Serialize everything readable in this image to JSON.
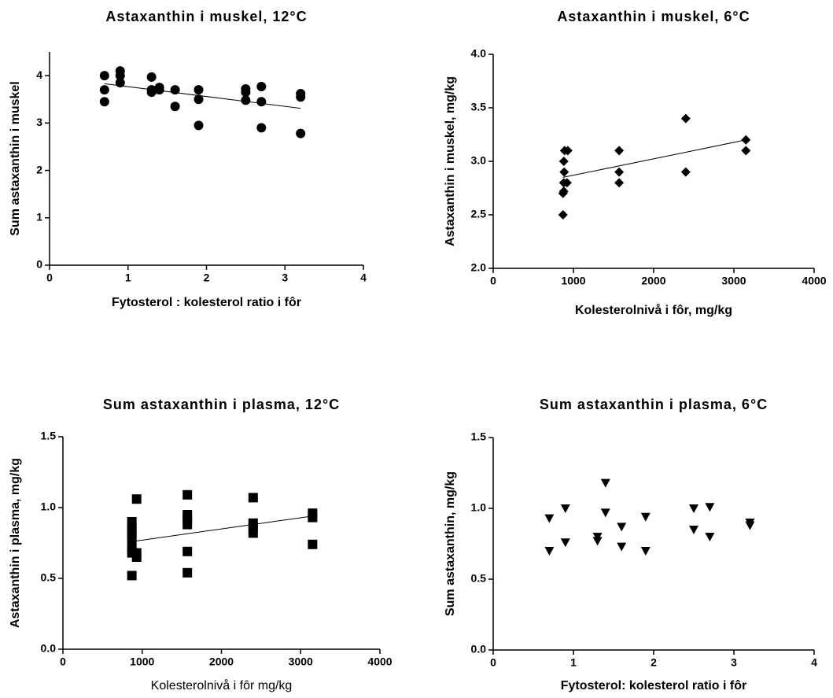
{
  "chart_data": [
    {
      "type": "scatter",
      "title": "Astaxanthin i muskel, 12°C",
      "x_label": "Fytosterol : kolesterol ratio i fôr",
      "y_label": "Sum astaxanthin i muskel",
      "marker": "circle",
      "color": "#000000",
      "x": [
        0.7,
        0.7,
        0.7,
        0.9,
        0.9,
        0.9,
        1.3,
        1.3,
        1.3,
        1.4,
        1.4,
        1.6,
        1.6,
        1.9,
        1.9,
        1.9,
        2.5,
        2.5,
        2.5,
        2.7,
        2.7,
        2.7,
        3.2,
        3.2,
        3.2
      ],
      "values": [
        4.0,
        3.7,
        3.45,
        4.1,
        4.0,
        3.85,
        3.97,
        3.65,
        3.7,
        3.75,
        3.7,
        3.7,
        3.35,
        3.7,
        3.5,
        2.95,
        3.72,
        3.65,
        3.48,
        3.77,
        3.45,
        2.9,
        3.62,
        3.55,
        2.78
      ],
      "trend_line": {
        "x": [
          0.7,
          3.2
        ],
        "y": [
          3.83,
          3.31
        ]
      },
      "xlim": [
        0,
        4
      ],
      "xticks": [
        0,
        1,
        2,
        3,
        4
      ],
      "ylim": [
        0,
        4.5
      ],
      "yticks": [
        0,
        1,
        2,
        3,
        4
      ]
    },
    {
      "type": "scatter",
      "title": "Astaxanthin i muskel, 6°C",
      "x_label": "Kolesterolnivå i fôr, mg/kg",
      "y_label": "Astaxanthin i muskel, mg/kg",
      "marker": "diamond",
      "color": "#000000",
      "x": [
        870,
        870,
        880,
        880,
        885,
        880,
        890,
        930,
        920,
        1570,
        1570,
        1570,
        2400,
        2400,
        3150,
        3150
      ],
      "values": [
        2.5,
        2.7,
        2.72,
        2.8,
        2.9,
        3.0,
        3.1,
        3.1,
        2.8,
        3.1,
        2.9,
        2.8,
        3.4,
        2.9,
        3.2,
        3.1
      ],
      "trend_line": {
        "x": [
          870,
          3150
        ],
        "y": [
          2.85,
          3.2
        ]
      },
      "xlim": [
        0,
        4000
      ],
      "xticks": [
        0,
        1000,
        2000,
        3000,
        4000
      ],
      "ylim": [
        2,
        4
      ],
      "yticks": [
        {
          "value": 2,
          "label": "2.0"
        },
        2.5,
        {
          "value": 3,
          "label": "3.0"
        },
        3.5,
        {
          "value": 4,
          "label": "4.0"
        }
      ]
    },
    {
      "type": "scatter",
      "title": "Sum astaxanthin i plasma, 12°C",
      "x_label": "Kolesterolnivå i fôr mg/kg",
      "y_label": "Astaxanthin i plasma, mg/kg",
      "marker": "square",
      "color": "#000000",
      "x": [
        870,
        870,
        870,
        870,
        870,
        870,
        870,
        930,
        930,
        930,
        1570,
        1570,
        1570,
        1570,
        1570,
        1570,
        2400,
        2400,
        2400,
        2400,
        3150,
        3150,
        3150
      ],
      "values": [
        0.52,
        0.68,
        0.72,
        0.78,
        0.82,
        0.85,
        0.9,
        1.06,
        0.65,
        0.68,
        1.09,
        0.95,
        0.92,
        0.88,
        0.69,
        0.54,
        1.07,
        0.89,
        0.86,
        0.82,
        0.96,
        0.93,
        0.74
      ],
      "trend_line": {
        "x": [
          870,
          3150
        ],
        "y": [
          0.76,
          0.94
        ]
      },
      "xlim": [
        0,
        4000
      ],
      "xticks": [
        0,
        1000,
        2000,
        3000,
        4000
      ],
      "ylim": [
        0,
        1.5
      ],
      "yticks": [
        {
          "value": 0,
          "label": "0.0"
        },
        0.5,
        {
          "value": 1,
          "label": "1.0"
        },
        1.5
      ]
    },
    {
      "type": "scatter",
      "title": "Sum astaxanthin i plasma, 6°C",
      "x_label": "Fytosterol: kolesterol ratio i fôr",
      "y_label": "Sum astaxanthin, mg/kg",
      "marker": "triangle-down",
      "color": "#000000",
      "x": [
        0.7,
        0.7,
        0.9,
        0.9,
        1.3,
        1.3,
        1.4,
        1.4,
        1.6,
        1.6,
        1.9,
        1.9,
        2.5,
        2.5,
        2.7,
        2.7,
        3.2,
        3.2
      ],
      "values": [
        0.93,
        0.7,
        1.0,
        0.76,
        0.8,
        0.77,
        1.18,
        0.97,
        0.87,
        0.73,
        0.94,
        0.7,
        1.0,
        0.85,
        1.01,
        0.8,
        0.9,
        0.88
      ],
      "xlim": [
        0,
        4
      ],
      "xticks": [
        0,
        1,
        2,
        3,
        4
      ],
      "ylim": [
        0,
        1.5
      ],
      "yticks": [
        {
          "value": 0,
          "label": "0.0"
        },
        0.5,
        {
          "value": 1,
          "label": "1.0"
        },
        1.5
      ]
    }
  ]
}
